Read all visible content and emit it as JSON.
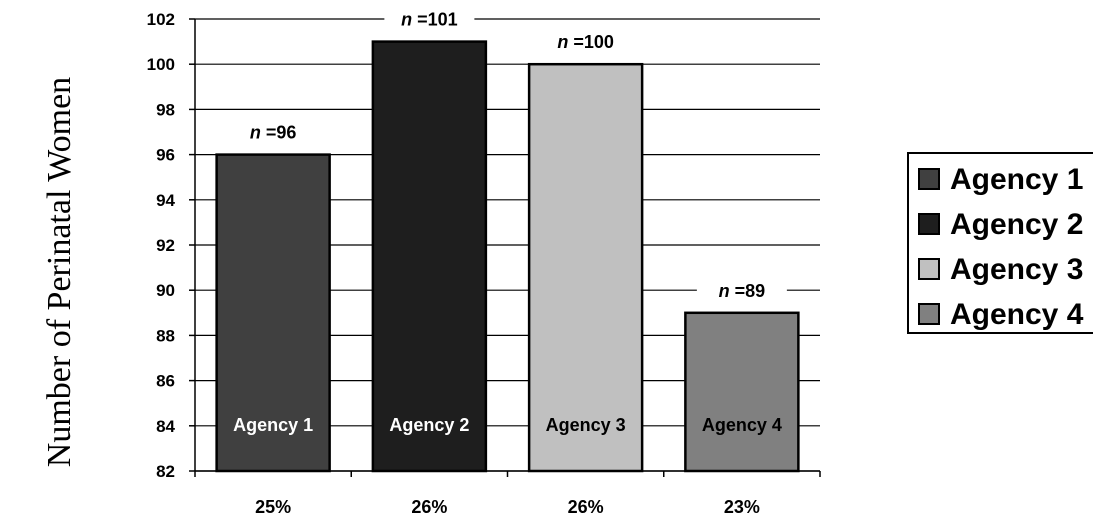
{
  "chart_data": {
    "type": "bar",
    "ylabel": "Number of Perinatal Women",
    "xlabel": "",
    "ylim": [
      82,
      102
    ],
    "yticks": [
      82,
      84,
      86,
      88,
      90,
      92,
      94,
      96,
      98,
      100,
      102
    ],
    "grid": true,
    "legend_position": "right",
    "categories": [
      "25%",
      "26%",
      "26%",
      "23%"
    ],
    "values": [
      96,
      101,
      100,
      89
    ],
    "bar_labels": [
      "Agency 1",
      "Agency 2",
      "Agency 3",
      "Agency 4"
    ],
    "n_labels": [
      {
        "prefix": "n",
        "text": " =96"
      },
      {
        "prefix": "n",
        "text": " =101"
      },
      {
        "prefix": "n",
        "text": " =100"
      },
      {
        "prefix": "n",
        "text": " =89"
      }
    ],
    "colors": [
      "#404040",
      "#1e1e1e",
      "#c0c0c0",
      "#808080"
    ],
    "bar_label_colors": [
      "#ffffff",
      "#ffffff",
      "#000000",
      "#000000"
    ],
    "legend": [
      "Agency 1",
      "Agency 2",
      "Agency 3",
      "Agency 4"
    ]
  }
}
